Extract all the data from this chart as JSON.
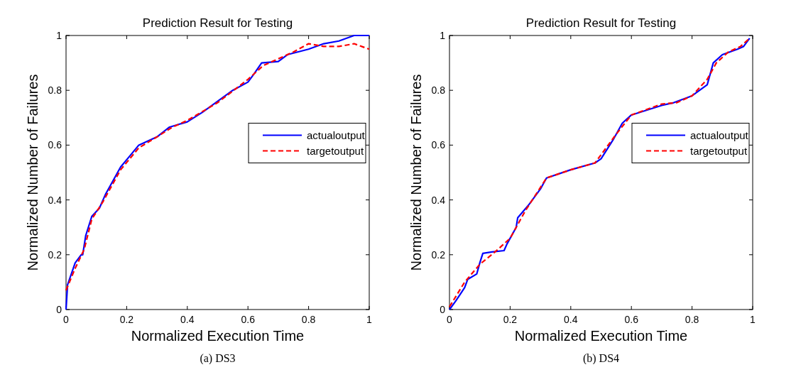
{
  "chart_data": [
    {
      "type": "line",
      "title": "Prediction Result for Testing",
      "xlabel": "Normalized Execution Time",
      "ylabel": "Normalized Number of Failures",
      "annotations": [
        "(a) DS3"
      ],
      "xlim": [
        0,
        1
      ],
      "ylim": [
        0,
        1
      ],
      "xticks": [
        0,
        0.2,
        0.4,
        0.6,
        0.8,
        1
      ],
      "yticks": [
        0,
        0.2,
        0.4,
        0.6,
        0.8,
        1
      ],
      "legend": "right",
      "series": [
        {
          "name": "actualoutput",
          "color": "#0000ff",
          "line_style": "solid",
          "x": [
            0,
            0.005,
            0.03,
            0.05,
            0.055,
            0.065,
            0.085,
            0.11,
            0.13,
            0.145,
            0.18,
            0.21,
            0.24,
            0.3,
            0.34,
            0.4,
            0.45,
            0.5,
            0.55,
            0.6,
            0.62,
            0.645,
            0.7,
            0.73,
            0.8,
            0.85,
            0.9,
            0.95,
            1
          ],
          "values": [
            0,
            0.09,
            0.17,
            0.2,
            0.2,
            0.27,
            0.34,
            0.37,
            0.42,
            0.45,
            0.52,
            0.56,
            0.6,
            0.63,
            0.665,
            0.685,
            0.72,
            0.76,
            0.8,
            0.83,
            0.86,
            0.9,
            0.905,
            0.93,
            0.95,
            0.97,
            0.98,
            1,
            1
          ]
        },
        {
          "name": "targetoutput",
          "color": "#ff0000",
          "line_style": "dashed",
          "x": [
            0,
            0.03,
            0.06,
            0.085,
            0.12,
            0.15,
            0.18,
            0.24,
            0.3,
            0.35,
            0.4,
            0.5,
            0.6,
            0.65,
            0.7,
            0.75,
            0.8,
            0.85,
            0.9,
            0.95,
            1
          ],
          "values": [
            0.07,
            0.15,
            0.22,
            0.33,
            0.39,
            0.45,
            0.51,
            0.59,
            0.63,
            0.665,
            0.69,
            0.755,
            0.84,
            0.89,
            0.915,
            0.94,
            0.97,
            0.96,
            0.96,
            0.97,
            0.95
          ]
        }
      ]
    },
    {
      "type": "line",
      "title": "Prediction Result for Testing",
      "xlabel": "Normalized Execution Time",
      "ylabel": "Normalized Number of Failures",
      "annotations": [
        "(b) DS4"
      ],
      "xlim": [
        0,
        1
      ],
      "ylim": [
        0,
        1
      ],
      "xticks": [
        0,
        0.2,
        0.4,
        0.6,
        0.8,
        1
      ],
      "yticks": [
        0,
        0.2,
        0.4,
        0.6,
        0.8,
        1
      ],
      "legend": "right",
      "series": [
        {
          "name": "actualoutput",
          "color": "#0000ff",
          "line_style": "solid",
          "x": [
            0,
            0.02,
            0.05,
            0.06,
            0.09,
            0.1,
            0.11,
            0.14,
            0.18,
            0.19,
            0.22,
            0.225,
            0.26,
            0.3,
            0.32,
            0.4,
            0.48,
            0.5,
            0.54,
            0.57,
            0.6,
            0.7,
            0.74,
            0.8,
            0.85,
            0.87,
            0.9,
            0.95,
            0.97,
            0.99
          ],
          "values": [
            0,
            0.03,
            0.08,
            0.11,
            0.13,
            0.17,
            0.205,
            0.21,
            0.215,
            0.24,
            0.3,
            0.335,
            0.38,
            0.44,
            0.48,
            0.51,
            0.535,
            0.55,
            0.62,
            0.68,
            0.71,
            0.745,
            0.755,
            0.78,
            0.82,
            0.9,
            0.93,
            0.95,
            0.96,
            0.99
          ]
        },
        {
          "name": "targetoutput",
          "color": "#ff0000",
          "line_style": "dashed",
          "x": [
            0,
            0.05,
            0.1,
            0.15,
            0.2,
            0.25,
            0.32,
            0.4,
            0.48,
            0.55,
            0.6,
            0.7,
            0.75,
            0.8,
            0.85,
            0.88,
            0.92,
            0.96,
            0.99
          ],
          "values": [
            0.01,
            0.1,
            0.165,
            0.21,
            0.26,
            0.36,
            0.48,
            0.51,
            0.535,
            0.64,
            0.71,
            0.75,
            0.755,
            0.78,
            0.84,
            0.9,
            0.94,
            0.96,
            0.99
          ]
        }
      ]
    }
  ]
}
